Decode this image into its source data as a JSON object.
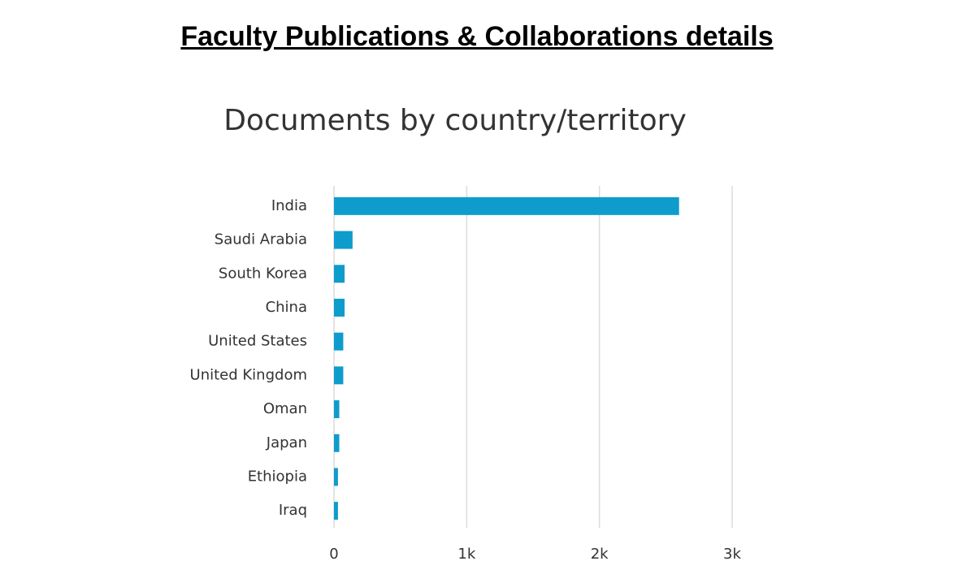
{
  "page_title": "Faculty Publications & Collaborations details",
  "chart_data": {
    "type": "barh",
    "title": "Documents by country/territory",
    "categories": [
      "India",
      "Saudi Arabia",
      "South Korea",
      "China",
      "United States",
      "United Kingdom",
      "Oman",
      "Japan",
      "Ethiopia",
      "Iraq"
    ],
    "values": [
      2600,
      140,
      80,
      80,
      70,
      70,
      40,
      40,
      30,
      30
    ],
    "color": "#0e9ccc",
    "xlim": [
      0,
      3000
    ],
    "xticks": [
      0,
      {
        "value": 1000,
        "label": "1k"
      },
      {
        "value": 2000,
        "label": "2k"
      },
      {
        "value": 3000,
        "label": "3k"
      }
    ],
    "grid": true
  }
}
